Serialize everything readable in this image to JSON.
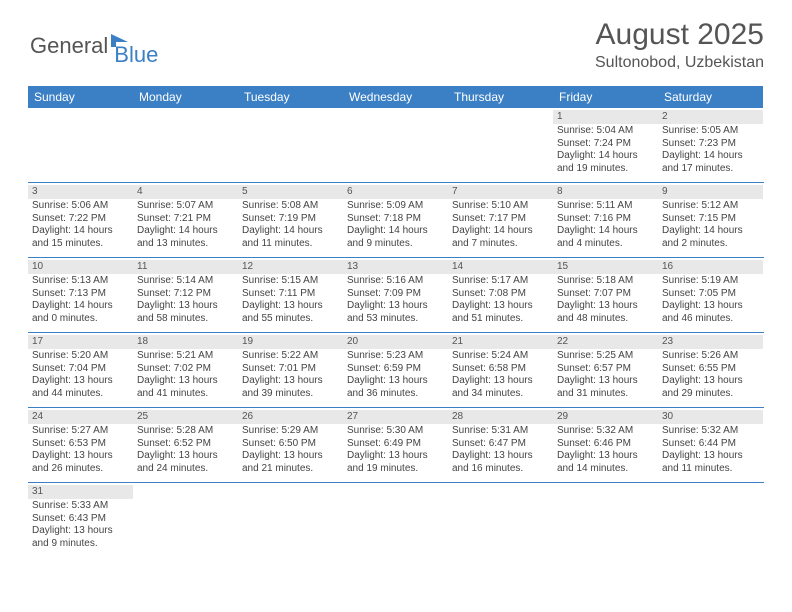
{
  "logo": {
    "text1": "General",
    "text2": "Blue"
  },
  "title": "August 2025",
  "location": "Sultonobod, Uzbekistan",
  "colors": {
    "header_bg": "#3b7fc4",
    "daynum_bg": "#e8e8e8",
    "text": "#444"
  },
  "dow": [
    "Sunday",
    "Monday",
    "Tuesday",
    "Wednesday",
    "Thursday",
    "Friday",
    "Saturday"
  ],
  "weeks": [
    [
      null,
      null,
      null,
      null,
      null,
      {
        "d": "1",
        "sr": "Sunrise: 5:04 AM",
        "ss": "Sunset: 7:24 PM",
        "dl1": "Daylight: 14 hours",
        "dl2": "and 19 minutes."
      },
      {
        "d": "2",
        "sr": "Sunrise: 5:05 AM",
        "ss": "Sunset: 7:23 PM",
        "dl1": "Daylight: 14 hours",
        "dl2": "and 17 minutes."
      }
    ],
    [
      {
        "d": "3",
        "sr": "Sunrise: 5:06 AM",
        "ss": "Sunset: 7:22 PM",
        "dl1": "Daylight: 14 hours",
        "dl2": "and 15 minutes."
      },
      {
        "d": "4",
        "sr": "Sunrise: 5:07 AM",
        "ss": "Sunset: 7:21 PM",
        "dl1": "Daylight: 14 hours",
        "dl2": "and 13 minutes."
      },
      {
        "d": "5",
        "sr": "Sunrise: 5:08 AM",
        "ss": "Sunset: 7:19 PM",
        "dl1": "Daylight: 14 hours",
        "dl2": "and 11 minutes."
      },
      {
        "d": "6",
        "sr": "Sunrise: 5:09 AM",
        "ss": "Sunset: 7:18 PM",
        "dl1": "Daylight: 14 hours",
        "dl2": "and 9 minutes."
      },
      {
        "d": "7",
        "sr": "Sunrise: 5:10 AM",
        "ss": "Sunset: 7:17 PM",
        "dl1": "Daylight: 14 hours",
        "dl2": "and 7 minutes."
      },
      {
        "d": "8",
        "sr": "Sunrise: 5:11 AM",
        "ss": "Sunset: 7:16 PM",
        "dl1": "Daylight: 14 hours",
        "dl2": "and 4 minutes."
      },
      {
        "d": "9",
        "sr": "Sunrise: 5:12 AM",
        "ss": "Sunset: 7:15 PM",
        "dl1": "Daylight: 14 hours",
        "dl2": "and 2 minutes."
      }
    ],
    [
      {
        "d": "10",
        "sr": "Sunrise: 5:13 AM",
        "ss": "Sunset: 7:13 PM",
        "dl1": "Daylight: 14 hours",
        "dl2": "and 0 minutes."
      },
      {
        "d": "11",
        "sr": "Sunrise: 5:14 AM",
        "ss": "Sunset: 7:12 PM",
        "dl1": "Daylight: 13 hours",
        "dl2": "and 58 minutes."
      },
      {
        "d": "12",
        "sr": "Sunrise: 5:15 AM",
        "ss": "Sunset: 7:11 PM",
        "dl1": "Daylight: 13 hours",
        "dl2": "and 55 minutes."
      },
      {
        "d": "13",
        "sr": "Sunrise: 5:16 AM",
        "ss": "Sunset: 7:09 PM",
        "dl1": "Daylight: 13 hours",
        "dl2": "and 53 minutes."
      },
      {
        "d": "14",
        "sr": "Sunrise: 5:17 AM",
        "ss": "Sunset: 7:08 PM",
        "dl1": "Daylight: 13 hours",
        "dl2": "and 51 minutes."
      },
      {
        "d": "15",
        "sr": "Sunrise: 5:18 AM",
        "ss": "Sunset: 7:07 PM",
        "dl1": "Daylight: 13 hours",
        "dl2": "and 48 minutes."
      },
      {
        "d": "16",
        "sr": "Sunrise: 5:19 AM",
        "ss": "Sunset: 7:05 PM",
        "dl1": "Daylight: 13 hours",
        "dl2": "and 46 minutes."
      }
    ],
    [
      {
        "d": "17",
        "sr": "Sunrise: 5:20 AM",
        "ss": "Sunset: 7:04 PM",
        "dl1": "Daylight: 13 hours",
        "dl2": "and 44 minutes."
      },
      {
        "d": "18",
        "sr": "Sunrise: 5:21 AM",
        "ss": "Sunset: 7:02 PM",
        "dl1": "Daylight: 13 hours",
        "dl2": "and 41 minutes."
      },
      {
        "d": "19",
        "sr": "Sunrise: 5:22 AM",
        "ss": "Sunset: 7:01 PM",
        "dl1": "Daylight: 13 hours",
        "dl2": "and 39 minutes."
      },
      {
        "d": "20",
        "sr": "Sunrise: 5:23 AM",
        "ss": "Sunset: 6:59 PM",
        "dl1": "Daylight: 13 hours",
        "dl2": "and 36 minutes."
      },
      {
        "d": "21",
        "sr": "Sunrise: 5:24 AM",
        "ss": "Sunset: 6:58 PM",
        "dl1": "Daylight: 13 hours",
        "dl2": "and 34 minutes."
      },
      {
        "d": "22",
        "sr": "Sunrise: 5:25 AM",
        "ss": "Sunset: 6:57 PM",
        "dl1": "Daylight: 13 hours",
        "dl2": "and 31 minutes."
      },
      {
        "d": "23",
        "sr": "Sunrise: 5:26 AM",
        "ss": "Sunset: 6:55 PM",
        "dl1": "Daylight: 13 hours",
        "dl2": "and 29 minutes."
      }
    ],
    [
      {
        "d": "24",
        "sr": "Sunrise: 5:27 AM",
        "ss": "Sunset: 6:53 PM",
        "dl1": "Daylight: 13 hours",
        "dl2": "and 26 minutes."
      },
      {
        "d": "25",
        "sr": "Sunrise: 5:28 AM",
        "ss": "Sunset: 6:52 PM",
        "dl1": "Daylight: 13 hours",
        "dl2": "and 24 minutes."
      },
      {
        "d": "26",
        "sr": "Sunrise: 5:29 AM",
        "ss": "Sunset: 6:50 PM",
        "dl1": "Daylight: 13 hours",
        "dl2": "and 21 minutes."
      },
      {
        "d": "27",
        "sr": "Sunrise: 5:30 AM",
        "ss": "Sunset: 6:49 PM",
        "dl1": "Daylight: 13 hours",
        "dl2": "and 19 minutes."
      },
      {
        "d": "28",
        "sr": "Sunrise: 5:31 AM",
        "ss": "Sunset: 6:47 PM",
        "dl1": "Daylight: 13 hours",
        "dl2": "and 16 minutes."
      },
      {
        "d": "29",
        "sr": "Sunrise: 5:32 AM",
        "ss": "Sunset: 6:46 PM",
        "dl1": "Daylight: 13 hours",
        "dl2": "and 14 minutes."
      },
      {
        "d": "30",
        "sr": "Sunrise: 5:32 AM",
        "ss": "Sunset: 6:44 PM",
        "dl1": "Daylight: 13 hours",
        "dl2": "and 11 minutes."
      }
    ],
    [
      {
        "d": "31",
        "sr": "Sunrise: 5:33 AM",
        "ss": "Sunset: 6:43 PM",
        "dl1": "Daylight: 13 hours",
        "dl2": "and 9 minutes."
      },
      null,
      null,
      null,
      null,
      null,
      null
    ]
  ]
}
